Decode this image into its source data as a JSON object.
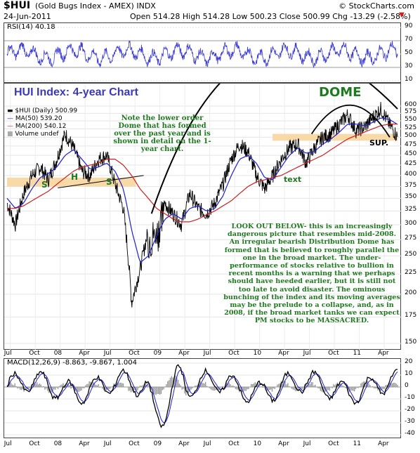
{
  "header": {
    "symbol": "$HUI",
    "name": "(Gold Bugs Index - AMEX) INDX",
    "site": "© StockCharts.com",
    "date": "24-Jun-2011",
    "ohlc": "Open 514.28  High 514.28  Low 500.23  Close 500.99  Chg -13.29 (-2.58%)",
    "chg_arrow": "▼"
  },
  "colors": {
    "price": "#000000",
    "ma50": "#1f1fd0",
    "ma200": "#d01f1f",
    "rsi": "#3a3ad0",
    "macd": "#000000",
    "signal": "#1f1fd0",
    "hist": "#999999",
    "band": "#f8d9a8",
    "note": "#1f7a1f",
    "title": "#3a3ab8"
  },
  "rsi_panel": {
    "label": "RSI(14) 40.18",
    "ticks": [
      "90",
      "70",
      "50",
      "30",
      "10"
    ]
  },
  "price_panel": {
    "title": "HUI Index: 4-year Chart",
    "legend": [
      "$HUI (Daily) 500.99",
      "MA(50) 539.20",
      "MA(200) 540.12",
      "Volume undef"
    ],
    "dome_label": "DOME",
    "sup_label": "SUP.",
    "s_left": "S",
    "h_label": "H",
    "s_right": "S",
    "text_label": "text",
    "note_top": "Note the lower order Dome that has formed over the past year and is shown in detail on the 1-year chart.",
    "note_main": "LOOK OUT BELOW- this is an increasingly dangerous picture that resembles mid-2008. An irregular bearish Distribution Dome has formed that is believed to roughly parallel the one in the broad market. The under-performance of stocks relative to bullion in recent months is a warning that we perhaps should have heeded earlier, but it is still not too late to avoid disaster. The ominous bunching of the index and its moving averages may be the prelude to a collapse, and, as in 2008, if the broad market tanks we can expect PM stocks to be MASSACRED.",
    "y_ticks": [
      "600",
      "575",
      "550",
      "525",
      "500",
      "475",
      "450",
      "425",
      "400",
      "375",
      "350",
      "325",
      "300",
      "275",
      "250",
      "225",
      "200",
      "175",
      "150"
    ]
  },
  "macd_panel": {
    "label": "MACD(12,26,9) -8.863, -9.867, 1.004",
    "ticks": [
      "20",
      "10",
      "0",
      "-10",
      "-20",
      "-30",
      "-40"
    ]
  },
  "x_axis": [
    "Jul",
    "Oct",
    "08",
    "Apr",
    "Jul",
    "Oct",
    "09",
    "Apr",
    "Jul",
    "Oct",
    "10",
    "Apr",
    "Jul",
    "Oct",
    "11",
    "Apr"
  ],
  "chart_data": {
    "type": "line",
    "title": "HUI Index: 4-year Chart",
    "x_range": [
      "Jul 2007",
      "Jun 2011"
    ],
    "y_scale": "log",
    "ylim": [
      150,
      625
    ],
    "series": [
      {
        "name": "$HUI (Daily)",
        "x": [
          "2007-07",
          "2007-08",
          "2007-09",
          "2007-10",
          "2007-11",
          "2007-12",
          "2008-01",
          "2008-02",
          "2008-03",
          "2008-04",
          "2008-05",
          "2008-06",
          "2008-07",
          "2008-08",
          "2008-09",
          "2008-10",
          "2008-11",
          "2008-12",
          "2009-01",
          "2009-02",
          "2009-03",
          "2009-04",
          "2009-05",
          "2009-06",
          "2009-07",
          "2009-08",
          "2009-09",
          "2009-10",
          "2009-11",
          "2009-12",
          "2010-01",
          "2010-02",
          "2010-03",
          "2010-04",
          "2010-05",
          "2010-06",
          "2010-07",
          "2010-08",
          "2010-09",
          "2010-10",
          "2010-11",
          "2010-12",
          "2011-01",
          "2011-02",
          "2011-03",
          "2011-04",
          "2011-05",
          "2011-06"
        ],
        "values": [
          340,
          300,
          360,
          400,
          420,
          390,
          440,
          510,
          470,
          410,
          400,
          440,
          450,
          380,
          330,
          190,
          230,
          290,
          300,
          340,
          320,
          300,
          360,
          330,
          320,
          340,
          380,
          440,
          480,
          460,
          400,
          370,
          400,
          440,
          470,
          480,
          430,
          470,
          500,
          510,
          540,
          570,
          520,
          530,
          560,
          590,
          540,
          501
        ]
      },
      {
        "name": "MA(50)",
        "values": [
          350,
          330,
          340,
          370,
          395,
          405,
          420,
          450,
          465,
          440,
          415,
          420,
          430,
          410,
          370,
          290,
          240,
          250,
          280,
          310,
          320,
          310,
          330,
          335,
          325,
          330,
          355,
          400,
          440,
          450,
          430,
          395,
          390,
          420,
          450,
          470,
          455,
          460,
          480,
          495,
          515,
          540,
          540,
          535,
          545,
          560,
          555,
          539
        ]
      },
      {
        "name": "MA(200)",
        "values": [
          330,
          330,
          335,
          345,
          355,
          365,
          380,
          395,
          410,
          420,
          425,
          430,
          440,
          440,
          425,
          400,
          370,
          350,
          330,
          320,
          310,
          305,
          305,
          310,
          318,
          325,
          335,
          345,
          360,
          375,
          385,
          390,
          395,
          400,
          410,
          420,
          430,
          440,
          450,
          465,
          480,
          495,
          505,
          515,
          525,
          535,
          540,
          540
        ]
      }
    ],
    "rsi": {
      "name": "RSI(14)",
      "last": 40.18,
      "range": [
        10,
        90
      ]
    },
    "macd": {
      "name": "MACD(12,26,9)",
      "macd": -8.863,
      "signal": -9.867,
      "histogram": 1.004,
      "range": [
        -40,
        20
      ]
    },
    "annotations": [
      "DOME",
      "SUP.",
      "S",
      "H",
      "S",
      "text"
    ]
  }
}
